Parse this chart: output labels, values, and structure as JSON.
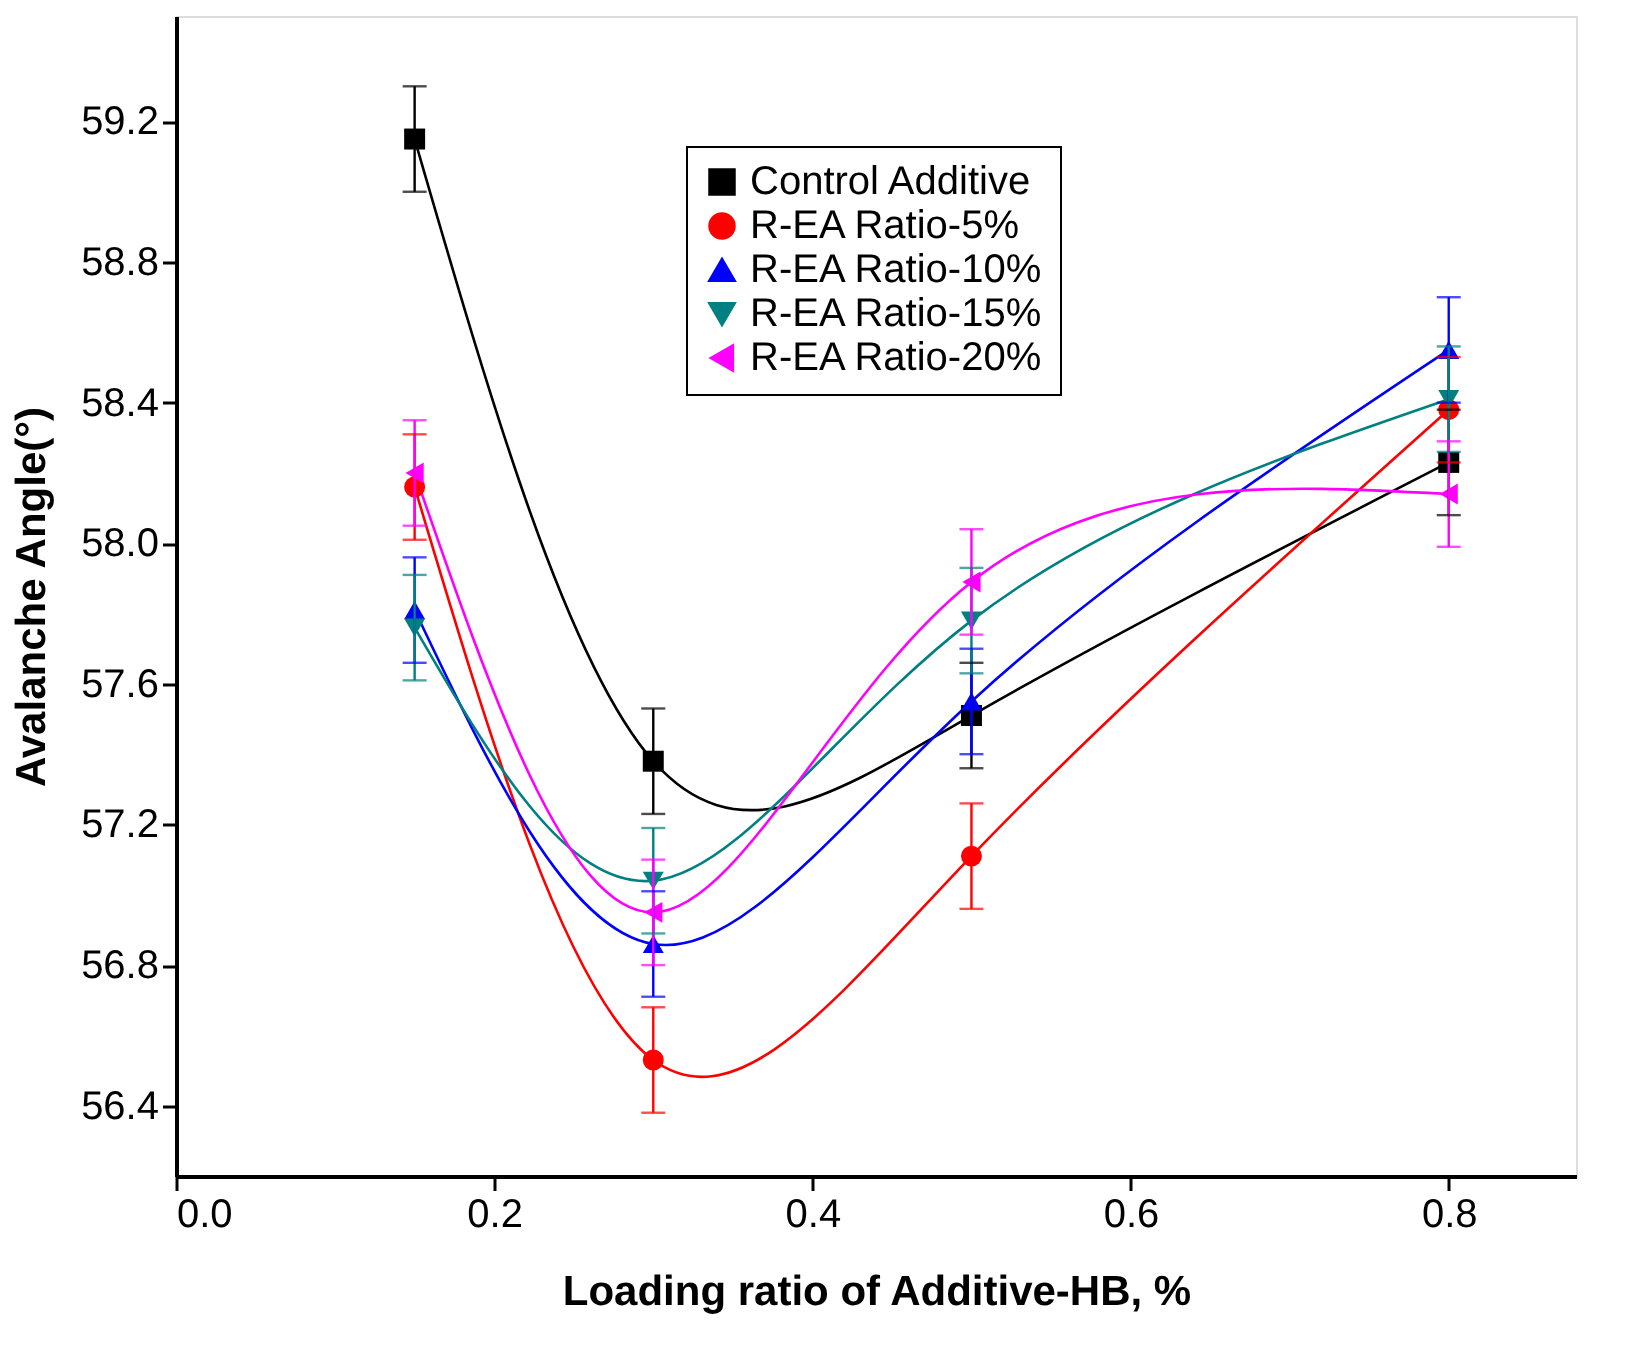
{
  "chart_data": {
    "type": "line",
    "xlabel": "Loading ratio of Additive-HB, %",
    "ylabel": "Avalanche Angle(°)",
    "x": [
      0.15,
      0.3,
      0.5,
      0.8
    ],
    "series": [
      {
        "name": "Control Additive",
        "color": "#000000",
        "marker": "square",
        "values": [
          59.15,
          57.38,
          57.51,
          58.23
        ],
        "errors": [
          0.15,
          0.15,
          0.15,
          0.15
        ]
      },
      {
        "name": "R-EA Ratio-5%",
        "color": "#ff0000",
        "marker": "circle",
        "values": [
          58.16,
          56.53,
          57.11,
          58.38
        ],
        "errors": [
          0.15,
          0.15,
          0.15,
          0.15
        ]
      },
      {
        "name": "R-EA Ratio-10%",
        "color": "#0000ff",
        "marker": "triangle-up",
        "values": [
          57.81,
          56.86,
          57.55,
          58.55
        ],
        "errors": [
          0.15,
          0.15,
          0.15,
          0.15
        ]
      },
      {
        "name": "R-EA Ratio-15%",
        "color": "#008080",
        "marker": "triangle-down",
        "values": [
          57.76,
          57.04,
          57.78,
          58.41
        ],
        "errors": [
          0.15,
          0.15,
          0.15,
          0.15
        ]
      },
      {
        "name": "R-EA Ratio-20%",
        "color": "#ff00ff",
        "marker": "triangle-left",
        "values": [
          58.2,
          56.95,
          57.89,
          58.14
        ],
        "errors": [
          0.15,
          0.15,
          0.15,
          0.15
        ]
      }
    ],
    "xlim": [
      0,
      0.88
    ],
    "xticks": [
      {
        "value": 0,
        "label": "0.0"
      },
      {
        "value": 0.2,
        "label": "0.2"
      },
      {
        "value": 0.4,
        "label": "0.4"
      },
      {
        "value": 0.6,
        "label": "0.6"
      },
      {
        "value": 0.8,
        "label": "0.8"
      }
    ],
    "ylim": [
      56.2,
      59.5
    ],
    "yticks": [
      {
        "value": 56.4,
        "label": "56.4"
      },
      {
        "value": 56.8,
        "label": "56.8"
      },
      {
        "value": 57.2,
        "label": "57.2"
      },
      {
        "value": 57.6,
        "label": "57.6"
      },
      {
        "value": 58.0,
        "label": "58.0"
      },
      {
        "value": 58.4,
        "label": "58.4"
      },
      {
        "value": 58.8,
        "label": "58.8"
      },
      {
        "value": 59.2,
        "label": "59.2"
      }
    ],
    "grid": false,
    "legend": "top right",
    "line_style": "solid"
  }
}
